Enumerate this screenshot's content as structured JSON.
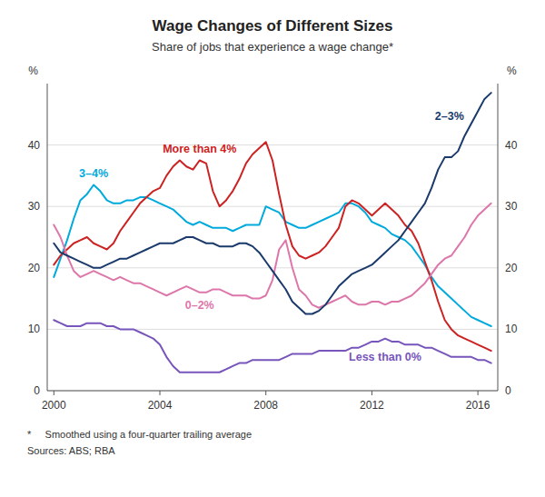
{
  "chart_data": {
    "type": "line",
    "title": "Wage Changes of Different Sizes",
    "subtitle": "Share of jobs that experience a wage change*",
    "y_label": "%",
    "y2_label": "%",
    "footnote": "*     Smoothed using a four-quarter trailing average",
    "source": "Sources: ABS; RBA",
    "x": [
      2000.0,
      2000.25,
      2000.5,
      2000.75,
      2001.0,
      2001.25,
      2001.5,
      2001.75,
      2002.0,
      2002.25,
      2002.5,
      2002.75,
      2003.0,
      2003.25,
      2003.5,
      2003.75,
      2004.0,
      2004.25,
      2004.5,
      2004.75,
      2005.0,
      2005.25,
      2005.5,
      2005.75,
      2006.0,
      2006.25,
      2006.5,
      2006.75,
      2007.0,
      2007.25,
      2007.5,
      2007.75,
      2008.0,
      2008.25,
      2008.5,
      2008.75,
      2009.0,
      2009.25,
      2009.5,
      2009.75,
      2010.0,
      2010.25,
      2010.5,
      2010.75,
      2011.0,
      2011.25,
      2011.5,
      2011.75,
      2012.0,
      2012.25,
      2012.5,
      2012.75,
      2013.0,
      2013.25,
      2013.5,
      2013.75,
      2014.0,
      2014.25,
      2014.5,
      2014.75,
      2015.0,
      2015.25,
      2015.5,
      2015.75,
      2016.0,
      2016.25,
      2016.5
    ],
    "xlim": [
      1999.75,
      2016.75
    ],
    "xticks": [
      2000,
      2004,
      2008,
      2012,
      2016
    ],
    "ylim": [
      0,
      50
    ],
    "yticks": [
      0,
      10,
      20,
      30,
      40
    ],
    "y2lim": [
      0,
      50
    ],
    "y2ticks": [
      0,
      10,
      20,
      30,
      40
    ],
    "grid": true,
    "series": [
      {
        "name": "3–4%",
        "color": "#00aadd",
        "values": [
          18.5,
          21.5,
          24.5,
          28.0,
          31.0,
          32.0,
          33.5,
          32.5,
          31.0,
          30.5,
          30.5,
          31.0,
          31.0,
          31.5,
          31.5,
          31.0,
          30.5,
          30.0,
          29.5,
          28.5,
          27.5,
          27.0,
          27.5,
          27.0,
          26.5,
          26.5,
          26.5,
          26.0,
          26.5,
          27.0,
          27.0,
          27.0,
          30.0,
          29.5,
          29.0,
          27.5,
          27.0,
          26.5,
          26.5,
          27.0,
          27.5,
          28.0,
          28.5,
          29.0,
          30.5,
          30.5,
          30.0,
          29.0,
          27.5,
          27.0,
          26.5,
          25.5,
          25.0,
          24.5,
          23.5,
          22.0,
          20.5,
          18.5,
          17.0,
          16.0,
          15.0,
          14.0,
          13.0,
          12.0,
          11.5,
          11.0,
          10.5
        ]
      },
      {
        "name": "More than 4%",
        "color": "#cc2222",
        "values": [
          20.5,
          22.0,
          23.0,
          24.0,
          24.5,
          25.0,
          24.0,
          23.5,
          23.0,
          24.0,
          26.0,
          27.5,
          29.0,
          30.5,
          31.5,
          32.5,
          33.0,
          35.0,
          36.5,
          37.5,
          36.5,
          36.0,
          37.5,
          37.0,
          32.5,
          30.0,
          31.0,
          32.5,
          34.5,
          37.0,
          38.5,
          39.5,
          40.5,
          37.5,
          32.0,
          27.0,
          23.5,
          22.0,
          21.5,
          22.0,
          22.5,
          23.5,
          25.0,
          26.5,
          30.0,
          31.0,
          30.5,
          29.5,
          28.5,
          29.5,
          30.5,
          29.5,
          28.5,
          27.0,
          26.0,
          24.0,
          21.0,
          18.0,
          14.5,
          11.5,
          10.0,
          9.0,
          8.5,
          8.0,
          7.5,
          7.0,
          6.5
        ]
      },
      {
        "name": "0–2%",
        "color": "#dd77aa",
        "values": [
          27.0,
          25.0,
          22.0,
          19.5,
          18.5,
          19.0,
          19.5,
          19.0,
          18.5,
          18.0,
          18.5,
          18.0,
          17.5,
          17.5,
          17.0,
          16.5,
          16.0,
          15.5,
          16.0,
          16.5,
          17.0,
          16.5,
          16.0,
          16.0,
          16.5,
          16.5,
          16.0,
          15.5,
          15.5,
          15.5,
          15.0,
          15.0,
          15.5,
          18.0,
          23.0,
          24.5,
          20.0,
          16.5,
          15.5,
          14.0,
          13.5,
          14.0,
          14.5,
          15.0,
          15.5,
          14.5,
          14.0,
          14.0,
          14.5,
          14.5,
          14.0,
          14.5,
          14.5,
          15.0,
          15.5,
          16.5,
          17.5,
          19.0,
          20.5,
          21.5,
          22.0,
          23.5,
          25.0,
          27.0,
          28.5,
          29.5,
          30.5
        ]
      },
      {
        "name": "Less than 0%",
        "color": "#7755bb",
        "values": [
          11.5,
          11.0,
          10.5,
          10.5,
          10.5,
          11.0,
          11.0,
          11.0,
          10.5,
          10.5,
          10.0,
          10.0,
          10.0,
          9.5,
          9.0,
          8.5,
          7.5,
          5.5,
          4.0,
          3.0,
          3.0,
          3.0,
          3.0,
          3.0,
          3.0,
          3.0,
          3.5,
          4.0,
          4.5,
          4.5,
          5.0,
          5.0,
          5.0,
          5.0,
          5.0,
          5.5,
          6.0,
          6.0,
          6.0,
          6.0,
          6.5,
          6.5,
          6.5,
          6.5,
          6.5,
          7.0,
          7.0,
          7.5,
          8.0,
          8.0,
          8.5,
          8.0,
          8.0,
          7.5,
          7.5,
          7.5,
          7.0,
          7.0,
          6.5,
          6.0,
          5.5,
          5.5,
          5.5,
          5.5,
          5.0,
          5.0,
          4.5
        ]
      },
      {
        "name": "2–3%",
        "color": "#1a3a6b",
        "values": [
          24.0,
          22.5,
          22.0,
          21.5,
          21.0,
          20.5,
          20.0,
          20.0,
          20.5,
          21.0,
          21.5,
          21.5,
          22.0,
          22.5,
          23.0,
          23.5,
          24.0,
          24.0,
          24.0,
          24.5,
          25.0,
          25.0,
          24.5,
          24.0,
          24.0,
          23.5,
          23.5,
          23.5,
          24.0,
          24.0,
          23.5,
          22.5,
          21.0,
          19.5,
          18.0,
          16.5,
          14.5,
          13.5,
          12.5,
          12.5,
          13.0,
          14.0,
          15.5,
          17.0,
          18.0,
          19.0,
          19.5,
          20.0,
          20.5,
          21.5,
          22.5,
          23.5,
          24.5,
          26.0,
          27.5,
          29.0,
          30.5,
          33.0,
          36.0,
          38.0,
          38.0,
          39.0,
          41.5,
          43.5,
          45.5,
          47.5,
          48.5
        ]
      }
    ]
  }
}
